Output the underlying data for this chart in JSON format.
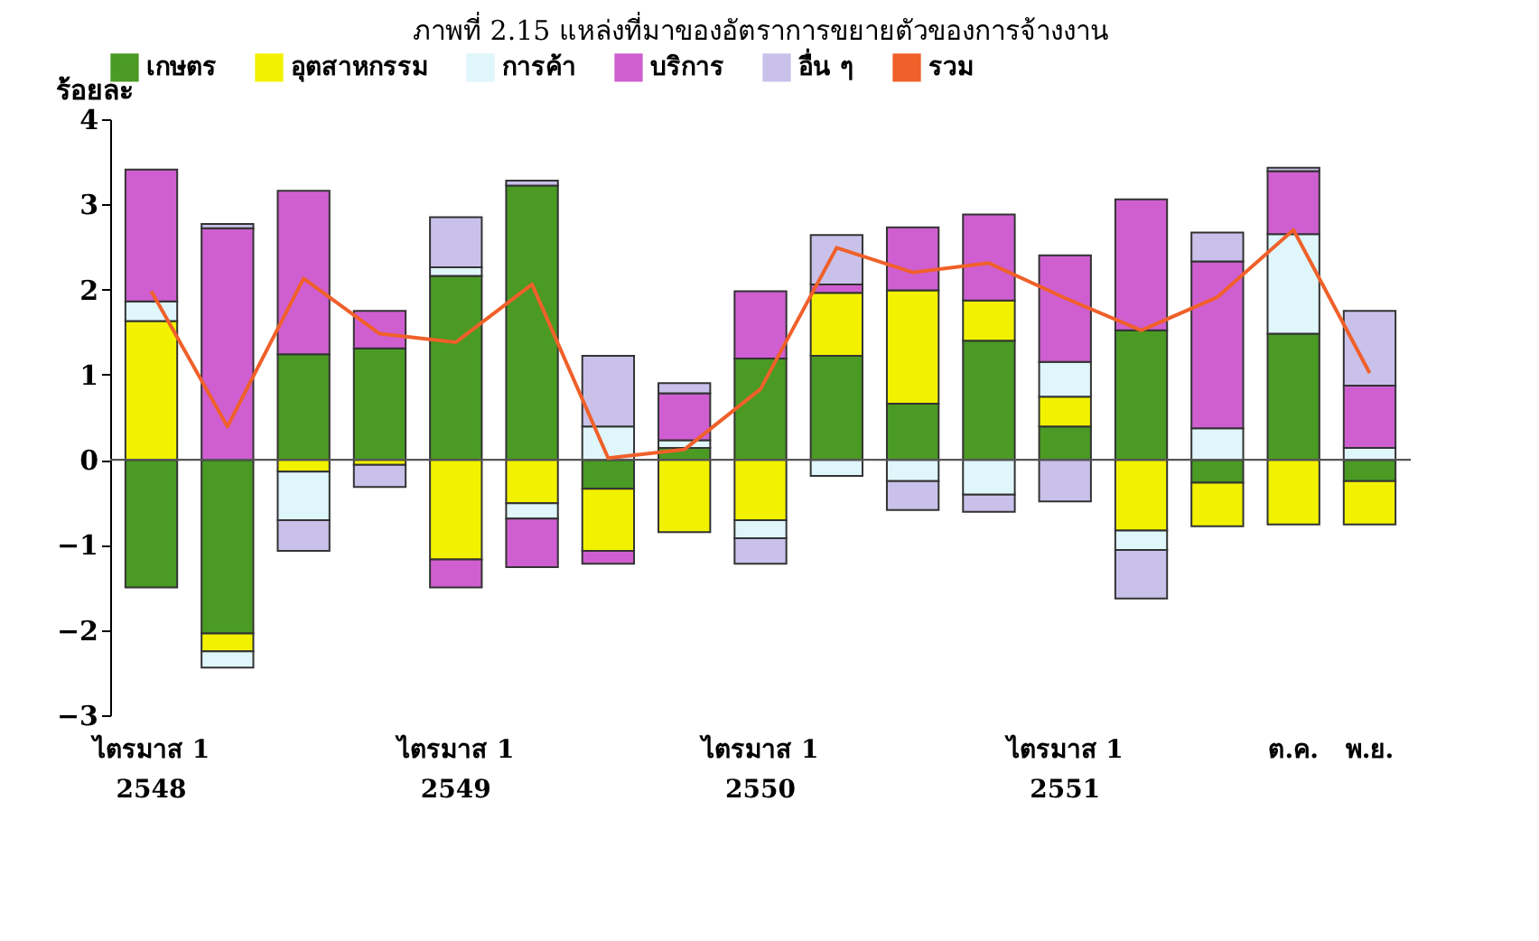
{
  "chart_data": {
    "type": "bar",
    "stacked": true,
    "title": "ภาพที่ 2.15 แหล่งที่มาของอัตราการขยายตัวของการจ้างงาน",
    "ylabel": "ร้อยละ",
    "categories": [
      "ไตรมาส 1\n2548",
      null,
      null,
      null,
      "ไตรมาส 1\n2549",
      null,
      null,
      null,
      "ไตรมาส 1\n2550",
      null,
      null,
      null,
      "ไตรมาส 1\n2551",
      null,
      null,
      "ต.ค.",
      "พ.ย."
    ],
    "series": [
      {
        "name": "เกษตร",
        "color": "#4a9a24",
        "values": [
          -1.5,
          -2.04,
          1.24,
          1.31,
          2.16,
          3.22,
          -0.34,
          0.14,
          1.19,
          1.22,
          0.66,
          1.4,
          0.39,
          1.52,
          -0.27,
          1.48,
          -0.25
        ]
      },
      {
        "name": "อุตสาหกรรม",
        "color": "#f2f200",
        "values": [
          1.63,
          -0.21,
          -0.14,
          -0.06,
          -1.17,
          -0.51,
          -0.73,
          -0.85,
          -0.71,
          0.74,
          1.33,
          0.47,
          0.35,
          -0.83,
          -0.51,
          -0.76,
          -0.51
        ]
      },
      {
        "name": "การค้า",
        "color": "#dff6fb",
        "values": [
          0.23,
          -0.19,
          -0.57,
          null,
          0.1,
          -0.18,
          0.39,
          0.09,
          -0.21,
          -0.19,
          -0.25,
          -0.41,
          0.41,
          -0.23,
          0.37,
          1.17,
          0.14
        ]
      },
      {
        "name": "บริการ",
        "color": "#cf5fd0",
        "values": [
          1.55,
          2.72,
          1.92,
          0.44,
          -0.33,
          -0.57,
          -0.15,
          0.55,
          0.79,
          0.1,
          0.74,
          1.01,
          1.25,
          1.54,
          1.96,
          0.74,
          0.73
        ]
      },
      {
        "name": "อื่น ๆ",
        "color": "#c9c1ea",
        "values": [
          null,
          0.05,
          -0.36,
          -0.26,
          0.59,
          0.06,
          0.83,
          0.12,
          -0.3,
          0.58,
          -0.34,
          -0.2,
          -0.49,
          -0.57,
          0.34,
          0.04,
          0.88
        ]
      },
      {
        "name": "รวม",
        "type": "line",
        "color": "#f0602a",
        "values": [
          1.98,
          0.39,
          2.13,
          1.48,
          1.38,
          2.06,
          0.02,
          0.12,
          0.83,
          2.49,
          2.2,
          2.31,
          1.9,
          1.52,
          1.91,
          2.7,
          1.02
        ]
      }
    ],
    "ylim": [
      -3,
      4
    ],
    "yticks": [
      -3,
      -2,
      -1,
      0,
      1,
      2,
      3,
      4
    ],
    "ref_lines": [
      {
        "axis": "y",
        "value": 0,
        "color": "#555555"
      }
    ],
    "grid": false,
    "legend": "top"
  }
}
